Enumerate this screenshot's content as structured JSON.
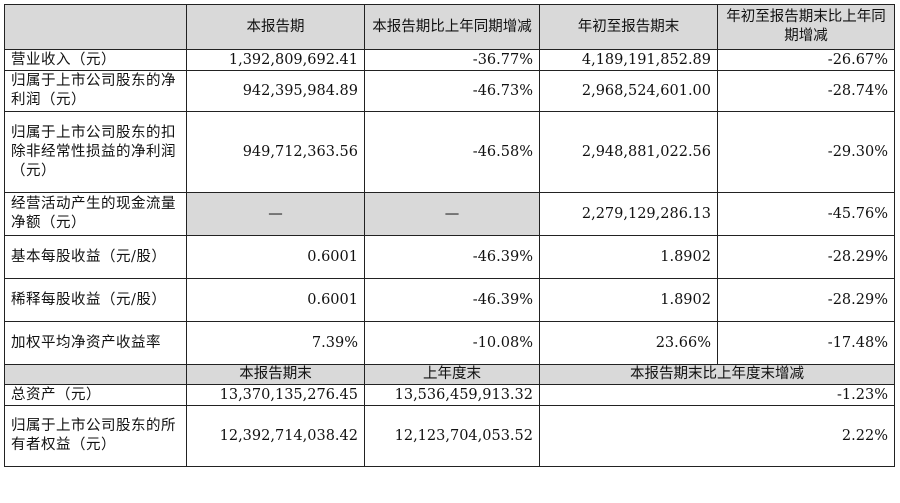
{
  "header": {
    "col1": "本报告期",
    "col2": "本报告期比上年同期增减",
    "col3": "年初至报告期末",
    "col4": "年初至报告期末比上年同期增减"
  },
  "rows": [
    {
      "label": "营业收入（元）",
      "current": "1,392,809,692.41",
      "change": "-36.77%",
      "ytd": "4,189,191,852.89",
      "ytd_change": "-26.67%"
    },
    {
      "label": "归属于上市公司股东的净利润（元）",
      "current": "942,395,984.89",
      "change": "-46.73%",
      "ytd": "2,968,524,601.00",
      "ytd_change": "-28.74%"
    },
    {
      "label": "归属于上市公司股东的扣除非经常性损益的净利润（元）",
      "current": "949,712,363.56",
      "change": "-46.58%",
      "ytd": "2,948,881,022.56",
      "ytd_change": "-29.30%"
    },
    {
      "label": "经营活动产生的现金流量净额（元）",
      "current": "—",
      "change": "—",
      "ytd": "2,279,129,286.13",
      "ytd_change": "-45.76%"
    },
    {
      "label": "基本每股收益（元/股）",
      "current": "0.6001",
      "change": "-46.39%",
      "ytd": "1.8902",
      "ytd_change": "-28.29%"
    },
    {
      "label": "稀释每股收益（元/股）",
      "current": "0.6001",
      "change": "-46.39%",
      "ytd": "1.8902",
      "ytd_change": "-28.29%"
    },
    {
      "label": "加权平均净资产收益率",
      "current": "7.39%",
      "change": "-10.08%",
      "ytd": "23.66%",
      "ytd_change": "-17.48%"
    }
  ],
  "header2": {
    "col1": "本报告期末",
    "col2": "上年度末",
    "col3": "本报告期末比上年度末增减"
  },
  "rows2": [
    {
      "label": "总资产（元）",
      "period_end": "13,370,135,276.45",
      "prior_year_end": "13,536,459,913.32",
      "change": "-1.23%"
    },
    {
      "label": "归属于上市公司股东的所有者权益（元）",
      "period_end": "12,392,714,038.42",
      "prior_year_end": "12,123,704,053.52",
      "change": "2.22%"
    }
  ]
}
